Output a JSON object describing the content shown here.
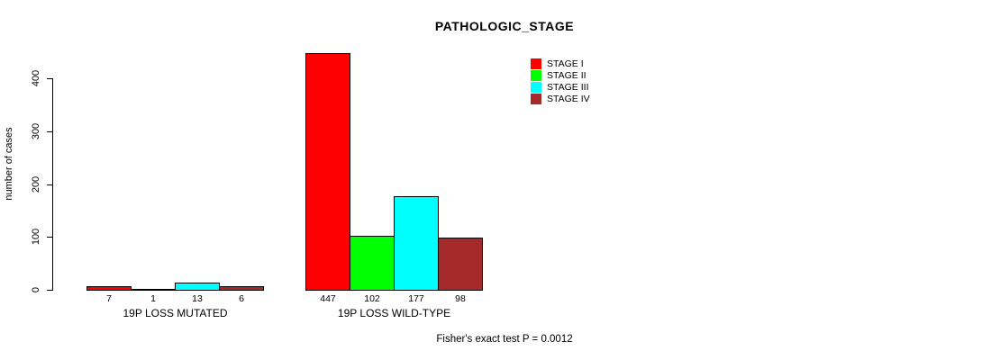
{
  "chart_data": {
    "type": "bar",
    "title": "PATHOLOGIC_STAGE",
    "xlabel": "",
    "ylabel": "number of cases",
    "ylim": [
      0,
      400
    ],
    "yticks": [
      0,
      100,
      200,
      300,
      400
    ],
    "grid": false,
    "legend_position": "top-right",
    "categories": [
      "19P LOSS MUTATED",
      "19P LOSS WILD-TYPE"
    ],
    "series": [
      {
        "name": "STAGE I",
        "color": "#FF0000",
        "values": [
          7,
          447
        ]
      },
      {
        "name": "STAGE II",
        "color": "#00FF00",
        "values": [
          1,
          102
        ]
      },
      {
        "name": "STAGE III",
        "color": "#00FFFF",
        "values": [
          13,
          177
        ]
      },
      {
        "name": "STAGE IV",
        "color": "#A52A2A",
        "values": [
          6,
          98
        ]
      }
    ],
    "bar_value_labels": [
      [
        7,
        1,
        13,
        6
      ],
      [
        447,
        102,
        177,
        98
      ]
    ],
    "annotation": "Fisher's exact test P = 0.0012"
  }
}
